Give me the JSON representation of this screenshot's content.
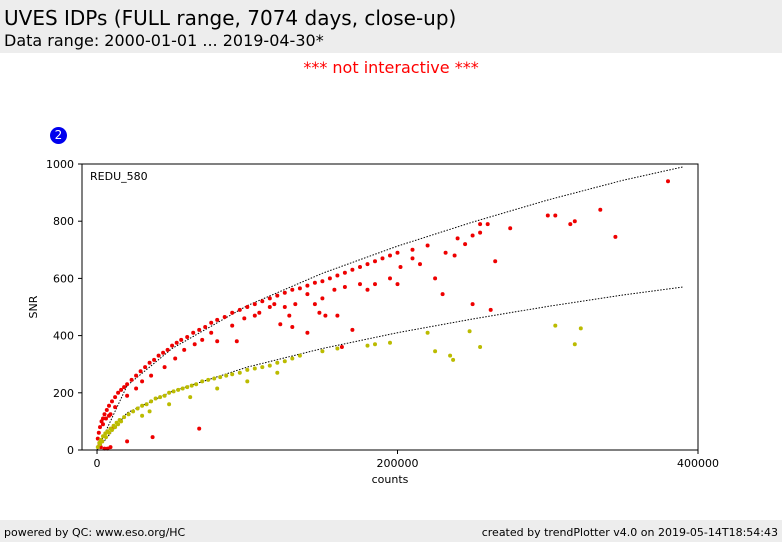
{
  "header": {
    "title": "UVES IDPs (FULL range, 7074 days, close-up)",
    "subtitle": "Data range: 2000-01-01 ... 2019-04-30*"
  },
  "notice": "*** not interactive ***",
  "badge": "2",
  "footer": {
    "left": "powered by QC: www.eso.org/HC",
    "right": "created by trendPlotter v4.0 on 2019-05-14T18:54:43"
  },
  "chart_data": {
    "type": "scatter",
    "title": "",
    "panel_label": "REDU_580",
    "xlabel": "counts",
    "ylabel": "SNR",
    "xlim": [
      -10000,
      400000
    ],
    "ylim": [
      0,
      1000
    ],
    "xticks": [
      0,
      200000,
      400000
    ],
    "xtick_labels": [
      "0",
      "200000",
      "400000"
    ],
    "yticks": [
      0,
      200,
      400,
      600,
      800,
      1000
    ],
    "ytick_labels": [
      "0",
      "200",
      "400",
      "600",
      "800",
      "1000"
    ],
    "grid": false,
    "legend": null,
    "series": [
      {
        "color": "#ee0000",
        "x": [
          500,
          1200,
          2000,
          3000,
          4000,
          5000,
          6500,
          8000,
          10000,
          12000,
          14000,
          16000,
          18000,
          20000,
          23000,
          26000,
          29000,
          32000,
          35000,
          38000,
          41000,
          44000,
          47000,
          50000,
          53000,
          56000,
          60000,
          64000,
          68000,
          72000,
          76000,
          80000,
          85000,
          90000,
          95000,
          100000,
          105000,
          110000,
          115000,
          120000,
          125000,
          130000,
          135000,
          140000,
          145000,
          150000,
          155000,
          160000,
          165000,
          170000,
          175000,
          180000,
          185000,
          190000,
          195000,
          200000,
          210000,
          220000,
          240000,
          255000,
          275000,
          305000,
          335000,
          380000,
          4000,
          6000,
          9000,
          12000,
          20000,
          26000,
          30000,
          36000,
          45000,
          52000,
          58000,
          65000,
          70000,
          76000,
          80000,
          90000,
          98000,
          105000,
          108000,
          115000,
          118000,
          122000,
          125000,
          128000,
          130000,
          132000,
          140000,
          145000,
          148000,
          150000,
          152000,
          158000,
          160000,
          165000,
          170000,
          175000,
          180000,
          185000,
          195000,
          202000,
          210000,
          215000,
          225000,
          232000,
          238000,
          245000,
          250000,
          255000,
          260000,
          265000,
          300000,
          315000,
          318000,
          345000,
          8000,
          3000,
          1500,
          2500,
          5000,
          7000,
          9000,
          11000,
          20000,
          37000,
          68000,
          93000,
          140000,
          163000,
          200000,
          230000,
          250000,
          262000
        ],
        "y": [
          40,
          60,
          80,
          100,
          110,
          125,
          140,
          155,
          170,
          185,
          200,
          210,
          220,
          230,
          245,
          260,
          275,
          290,
          305,
          315,
          330,
          340,
          350,
          365,
          375,
          385,
          395,
          410,
          420,
          430,
          445,
          455,
          465,
          480,
          490,
          500,
          510,
          520,
          530,
          540,
          550,
          560,
          565,
          575,
          585,
          590,
          600,
          610,
          620,
          630,
          640,
          650,
          660,
          670,
          680,
          690,
          700,
          715,
          740,
          760,
          775,
          820,
          840,
          940,
          90,
          110,
          125,
          150,
          190,
          215,
          240,
          260,
          290,
          320,
          350,
          370,
          385,
          410,
          380,
          435,
          460,
          470,
          480,
          500,
          510,
          440,
          500,
          470,
          430,
          510,
          545,
          510,
          480,
          530,
          470,
          560,
          470,
          570,
          420,
          580,
          560,
          580,
          600,
          640,
          670,
          650,
          600,
          690,
          680,
          720,
          750,
          790,
          790,
          660,
          820,
          790,
          800,
          745,
          120,
          30,
          15,
          10,
          5,
          5,
          10,
          80,
          30,
          45,
          75,
          380,
          410,
          360,
          580,
          545,
          510,
          490
        ],
        "fit": {
          "x": [
            0,
            20000,
            50000,
            100000,
            150000,
            200000,
            250000,
            300000,
            350000,
            390000
          ],
          "y": [
            0,
            225,
            355,
            505,
            618,
            713,
            797,
            874,
            943,
            990
          ]
        }
      },
      {
        "color": "#bbbb00",
        "x": [
          500,
          1500,
          2500,
          4000,
          5500,
          7000,
          9000,
          11000,
          13000,
          15000,
          18000,
          21000,
          24000,
          27000,
          30000,
          33000,
          36000,
          39000,
          42000,
          45000,
          48000,
          51000,
          54000,
          57000,
          60000,
          63000,
          66000,
          70000,
          74000,
          78000,
          82000,
          86000,
          90000,
          95000,
          100000,
          105000,
          110000,
          115000,
          120000,
          125000,
          130000,
          135000,
          150000,
          160000,
          180000,
          185000,
          195000,
          220000,
          225000,
          235000,
          237000,
          248000,
          255000,
          305000,
          318000,
          322000,
          2000,
          3500,
          6000,
          8000,
          10000,
          12000,
          14000,
          16000,
          30000,
          35000,
          48000,
          62000,
          80000,
          100000,
          120000
        ],
        "y": [
          10,
          25,
          35,
          48,
          58,
          65,
          75,
          85,
          95,
          105,
          115,
          125,
          135,
          145,
          155,
          160,
          170,
          180,
          185,
          190,
          200,
          205,
          210,
          215,
          220,
          225,
          230,
          240,
          245,
          250,
          255,
          260,
          265,
          270,
          280,
          285,
          290,
          295,
          305,
          310,
          320,
          330,
          345,
          355,
          365,
          370,
          375,
          410,
          345,
          330,
          315,
          415,
          360,
          435,
          370,
          425,
          20,
          30,
          45,
          60,
          70,
          80,
          90,
          100,
          120,
          135,
          160,
          185,
          215,
          240,
          270
        ],
        "fit": {
          "x": [
            0,
            20000,
            50000,
            100000,
            150000,
            200000,
            250000,
            300000,
            350000,
            390000
          ],
          "y": [
            0,
            130,
            205,
            290,
            355,
            410,
            458,
            502,
            542,
            570
          ]
        }
      }
    ]
  }
}
